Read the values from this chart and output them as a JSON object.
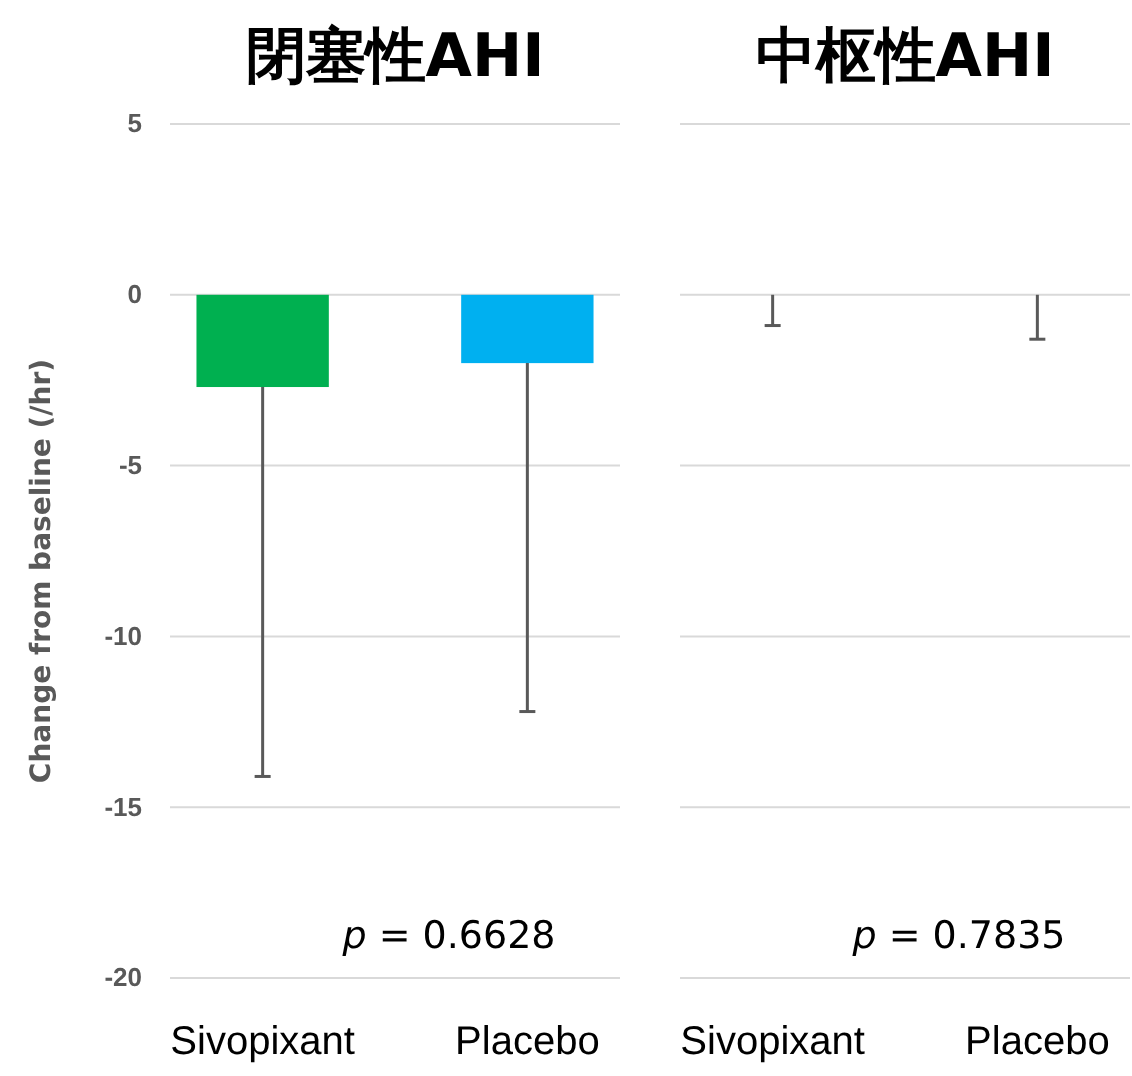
{
  "chart_data": [
    {
      "type": "bar",
      "title": "閉塞性AHI",
      "ylabel": "Change from baseline (/hr)",
      "categories": [
        "Sivopixant",
        "Placebo"
      ],
      "values": [
        -2.7,
        -2.0
      ],
      "colors": [
        "#00b050",
        "#00b0f0"
      ],
      "errors": [
        [
          -14.1,
          -2.7
        ],
        [
          -12.2,
          -2.0
        ]
      ],
      "ylim": [
        -20,
        5
      ],
      "yticks": [
        5,
        0,
        -5,
        -10,
        -15,
        -20
      ],
      "grid": "y",
      "annotations": [
        "p = 0.6628"
      ]
    },
    {
      "type": "bar",
      "title": "中枢性AHI",
      "categories": [
        "Sivopixant",
        "Placebo"
      ],
      "values": [
        0,
        0
      ],
      "colors": [
        "#00b050",
        "#00b0f0"
      ],
      "errors": [
        [
          -0.9,
          0
        ],
        [
          -1.3,
          0
        ]
      ],
      "ylim": [
        -20,
        5
      ],
      "yticks": [
        5,
        0,
        -5,
        -10,
        -15,
        -20
      ],
      "grid": "y",
      "tick_labels": "x",
      "annotations": [
        "p = 0.7835"
      ]
    }
  ]
}
